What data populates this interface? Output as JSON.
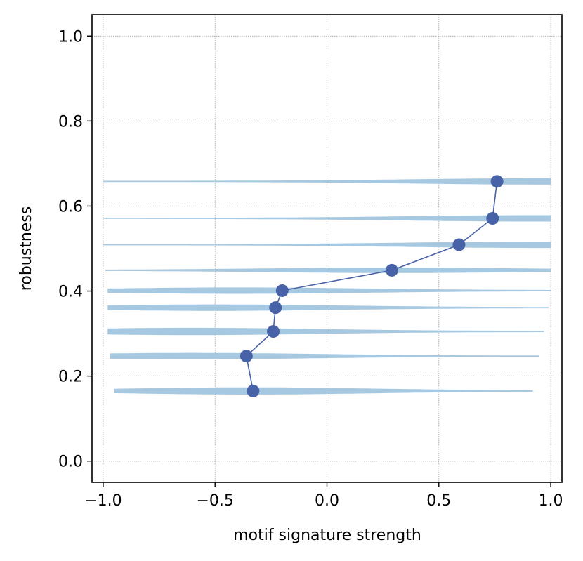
{
  "chart_data": {
    "type": "line",
    "title": "",
    "xlabel": "motif signature strength",
    "ylabel": "robustness",
    "xlim": [
      -1.05,
      1.05
    ],
    "ylim": [
      -0.05,
      1.05
    ],
    "xticks": [
      -1.0,
      -0.5,
      0.0,
      0.5,
      1.0
    ],
    "xtick_labels": [
      "−1.0",
      "−0.5",
      "0.0",
      "0.5",
      "1.0"
    ],
    "yticks": [
      0.0,
      0.2,
      0.4,
      0.6,
      0.8,
      1.0
    ],
    "ytick_labels": [
      "0.0",
      "0.2",
      "0.4",
      "0.6",
      "0.8",
      "1.0"
    ],
    "grid": true,
    "colors": {
      "line": "#4862a8",
      "violin": "#a6c8e0",
      "grid": "#999999"
    },
    "series": [
      {
        "points": [
          {
            "x": -0.33,
            "y": 0.165
          },
          {
            "x": -0.36,
            "y": 0.247
          },
          {
            "x": -0.24,
            "y": 0.305
          },
          {
            "x": -0.23,
            "y": 0.361
          },
          {
            "x": -0.2,
            "y": 0.401
          },
          {
            "x": 0.29,
            "y": 0.449
          },
          {
            "x": 0.59,
            "y": 0.509
          },
          {
            "x": 0.74,
            "y": 0.571
          },
          {
            "x": 0.76,
            "y": 0.658
          }
        ]
      }
    ],
    "distributions": [
      {
        "y": 0.165,
        "xmin": -0.95,
        "xmax": 0.92,
        "peak_x": -0.35,
        "peak_half_width": 0.008
      },
      {
        "y": 0.247,
        "xmin": -0.97,
        "xmax": 0.95,
        "peak_x": -0.6,
        "peak_half_width": 0.007
      },
      {
        "y": 0.305,
        "xmin": -0.98,
        "xmax": 0.97,
        "peak_x": -0.6,
        "peak_half_width": 0.008
      },
      {
        "y": 0.361,
        "xmin": -0.98,
        "xmax": 0.99,
        "peak_x": -0.5,
        "peak_half_width": 0.007
      },
      {
        "y": 0.401,
        "xmin": -0.98,
        "xmax": 1.0,
        "peak_x": -0.4,
        "peak_half_width": 0.007
      },
      {
        "y": 0.449,
        "xmin": -0.99,
        "xmax": 1.0,
        "peak_x": 0.3,
        "peak_half_width": 0.006
      },
      {
        "y": 0.509,
        "xmin": -1.0,
        "xmax": 1.0,
        "peak_x": 0.95,
        "peak_half_width": 0.007
      },
      {
        "y": 0.571,
        "xmin": -1.0,
        "xmax": 1.0,
        "peak_x": 0.95,
        "peak_half_width": 0.007
      },
      {
        "y": 0.658,
        "xmin": -1.0,
        "xmax": 1.0,
        "peak_x": 0.97,
        "peak_half_width": 0.007
      }
    ]
  }
}
